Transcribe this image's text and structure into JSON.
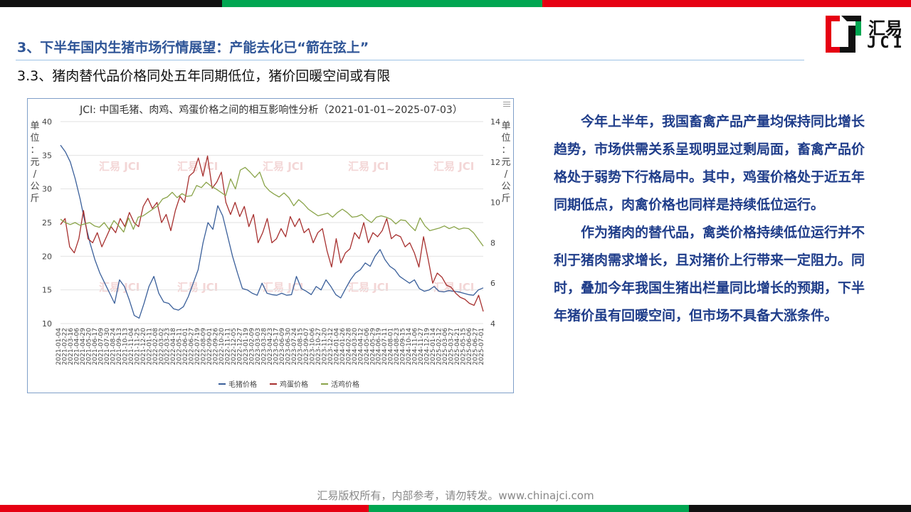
{
  "colors": {
    "green": "#00a651",
    "red": "#e60012",
    "black": "#111111",
    "title_blue": "#2f5597",
    "text_blue": "#1f3d8a"
  },
  "header": {
    "section_title": "3、下半年国内生猪市场行情展望：产能去化已“箭在弦上”",
    "sub_title": "3.3、猪肉替代品价格同处五年同期低位，猪价回暖空间或有限"
  },
  "logo": {
    "cn": "汇易",
    "en": "JCI"
  },
  "body": {
    "paragraphs": [
      "今年上半年，我国畜禽产品产量均保持同比增长趋势，市场供需关系呈现明显过剩局面，畜禽产品价格处于弱势下行格局中。其中，鸡蛋价格处于近五年同期低点，肉禽价格也同样是持续低位运行。",
      "作为猪肉的替代品，禽类价格持续低位运行并不利于猪肉需求增长，且对猪价上行带来一定阻力。同时，叠加今年我国生猪出栏量同比增长的预期，下半年猪价虽有回暖空间，但市场不具备大涨条件。"
    ]
  },
  "footer": {
    "text": "汇易版权所有，内部参考，请勿转发。www.chinajci.com"
  },
  "chart_data": {
    "type": "line",
    "title": "JCI: 中国毛猪、肉鸡、鸡蛋价格之间的相互影响性分析（2021-01-01~2025-07-03）",
    "left_axis_label": "单位：元/公斤",
    "right_axis_label": "单位：元/公斤",
    "left_ylim": [
      10,
      40
    ],
    "left_ticks": [
      10,
      15,
      20,
      25,
      30,
      35,
      40
    ],
    "right_ylim": [
      4,
      14
    ],
    "right_ticks": [
      4,
      6,
      8,
      10,
      12,
      14
    ],
    "x_tick_labels": [
      "2021-01-04",
      "2021-02-22",
      "2021-03-16",
      "2021-04-06",
      "2021-04-29",
      "2021-05-20",
      "2021-06-17",
      "2021-07-09",
      "2021-07-30",
      "2021-08-24",
      "2021-09-13",
      "2021-10-13",
      "2021-11-04",
      "2021-11-25",
      "2021-12-20",
      "2022-01-11",
      "2022-02-08",
      "2022-03-02",
      "2022-03-23",
      "2022-04-18",
      "2022-05-11",
      "2022-06-01",
      "2022-06-27",
      "2022-07-19",
      "2022-08-09",
      "2022-09-01",
      "2022-09-26",
      "2022-10-20",
      "2022-11-11",
      "2022-12-05",
      "2022-12-27",
      "2023-01-19",
      "2023-02-09",
      "2023-03-03",
      "2023-03-28",
      "2023-04-23",
      "2023-05-17",
      "2023-06-09",
      "2023-06-30",
      "2023-07-24",
      "2023-08-15",
      "2023-09-07",
      "2023-10-06",
      "2023-10-27",
      "2023-11-20",
      "2023-12-12",
      "2024-01-04",
      "2024-01-26",
      "2024-02-28",
      "2024-03-20",
      "2024-04-12",
      "2024-05-06",
      "2024-05-29",
      "2024-06-19",
      "2024-07-11",
      "2024-08-01",
      "2024-08-23",
      "2024-09-15",
      "2024-10-14",
      "2024-11-06",
      "2024-11-27",
      "2024-12-19",
      "2025-01-14",
      "2025-02-12",
      "2025-03-06",
      "2025-03-27",
      "2025-04-21",
      "2025-05-15",
      "2025-06-06",
      "2025-06-27",
      "2025-07-01"
    ],
    "series": [
      {
        "name": "毛猪价格",
        "axis": "left",
        "color": "#3a5f9a",
        "values": [
          36.5,
          35.5,
          34,
          31.5,
          28.5,
          25,
          22,
          19.5,
          17.5,
          16,
          14.5,
          13,
          16.5,
          15.5,
          13.5,
          11.2,
          10.8,
          13,
          15.5,
          17,
          14.5,
          13.2,
          13,
          12.2,
          12,
          12.5,
          14,
          16,
          18,
          22,
          25,
          24,
          27.5,
          26,
          23,
          20,
          17.5,
          15.2,
          15,
          14.5,
          14.2,
          16,
          14.5,
          14.3,
          14.2,
          14.5,
          14.2,
          14.3,
          17,
          15.2,
          14.8,
          14.3,
          15.5,
          15,
          16.5,
          15.5,
          14.3,
          13.8,
          15.2,
          16.5,
          17.5,
          18,
          19,
          18.5,
          20,
          21,
          19.5,
          18.5,
          18,
          17,
          16.5,
          16,
          16.5,
          15.2,
          14.8,
          15,
          15.5,
          14.8,
          14.7,
          14.9,
          14.8,
          14.7,
          14.5,
          14.3,
          14.2,
          15,
          15.3
        ]
      },
      {
        "name": "鸡蛋价格",
        "axis": "right",
        "color": "#a7302f",
        "values": [
          8.9,
          9.2,
          7.8,
          7.5,
          8.2,
          9.6,
          8.2,
          8,
          8.5,
          7.8,
          8.3,
          8.8,
          8.5,
          9.2,
          8.8,
          9.5,
          9,
          8.8,
          9.8,
          10.2,
          9.7,
          10,
          9,
          9.4,
          8.6,
          9.6,
          10.3,
          10,
          11.3,
          11.5,
          12.2,
          11.3,
          12.3,
          10.7,
          11,
          11.5,
          10,
          9.4,
          10,
          9.3,
          9.8,
          8.8,
          9.4,
          8,
          8.5,
          9.2,
          8,
          8.2,
          8.7,
          8.3,
          9.3,
          8.8,
          9.2,
          8.5,
          8.7,
          8,
          8.5,
          8.7,
          7.6,
          6.8,
          8.2,
          7,
          7.5,
          7.7,
          8.5,
          8.2,
          9,
          8,
          8.5,
          8.3,
          8.6,
          9.2,
          8.2,
          8.4,
          8.3,
          7.8,
          8,
          7.5,
          6.8,
          8.3,
          7.2,
          6,
          6.5,
          6.3,
          5.9,
          5.8,
          5.5,
          5.3,
          5.2,
          5,
          4.9,
          5.4,
          4.6
        ]
      },
      {
        "name": "活鸡价格",
        "axis": "left",
        "color": "#8aa44a",
        "values": [
          25.5,
          25,
          24.7,
          25,
          24.6,
          24.8,
          25,
          24.5,
          24.3,
          25,
          24,
          25.3,
          24.5,
          23.6,
          25.7,
          24,
          25.8,
          26,
          26.5,
          27,
          27.5,
          28.5,
          28.8,
          29.5,
          28.7,
          29.3,
          28.9,
          29,
          30.5,
          30.2,
          31,
          30.4,
          30,
          29.5,
          29,
          31.5,
          30,
          32.8,
          33.2,
          32.5,
          31.7,
          32.5,
          30.5,
          29.7,
          29.2,
          28.8,
          29.4,
          28.7,
          27.5,
          28.4,
          27.8,
          27,
          26.5,
          26,
          26.2,
          26.4,
          25.8,
          26.5,
          27,
          26.5,
          25.8,
          25.9,
          26.2,
          25.5,
          25,
          25.8,
          26,
          25.8,
          25.5,
          24.8,
          25.4,
          25.3,
          24.5,
          23.8,
          25.7,
          24.5,
          23.8,
          24,
          24.2,
          24.5,
          24.1,
          24.4,
          24,
          24.2,
          24.1,
          23.5,
          22.5,
          21.5
        ]
      }
    ],
    "legend_position": "bottom",
    "watermark": "汇易 JCI"
  }
}
